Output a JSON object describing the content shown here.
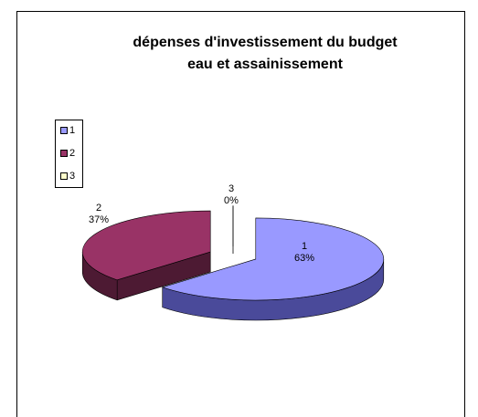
{
  "chart_data": {
    "type": "pie3d",
    "title": [
      "dépenses d'investissement  du budget",
      "eau et assainissement"
    ],
    "categories": [
      "1",
      "2",
      "3"
    ],
    "values": [
      63,
      37,
      0
    ],
    "value_labels": [
      "63%",
      "37%",
      "0%"
    ],
    "colors": [
      "#9999ff",
      "#993366",
      "#ffffcc"
    ],
    "side_colors": [
      "#4a4a9a",
      "#4d1a33",
      "#bbbb88"
    ],
    "legend": "left"
  }
}
